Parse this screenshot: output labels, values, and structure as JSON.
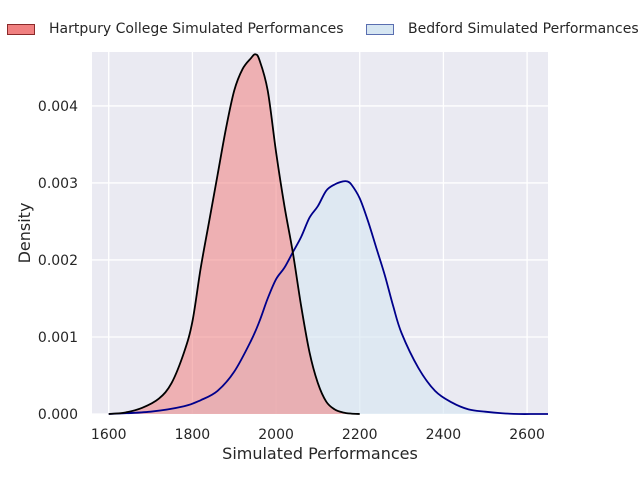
{
  "chart_data": {
    "type": "area",
    "title": "",
    "xlabel": "Simulated Performances",
    "ylabel": "Density",
    "xlim": [
      1560,
      2650
    ],
    "ylim": [
      0,
      0.0047
    ],
    "x_ticks": [
      1600,
      1800,
      2000,
      2200,
      2400,
      2600
    ],
    "y_ticks": [
      0.0,
      0.001,
      0.002,
      0.003,
      0.004
    ],
    "y_tick_labels": [
      "0.000",
      "0.001",
      "0.002",
      "0.003",
      "0.004"
    ],
    "grid": true,
    "legend_position": "top",
    "background": "#eaeaf2",
    "series": [
      {
        "name": "Hartpury College Simulated Performances",
        "fill": "#f08080",
        "line": "#000000",
        "fill_opacity": 0.55,
        "x": [
          1600,
          1640,
          1680,
          1720,
          1750,
          1780,
          1800,
          1820,
          1840,
          1860,
          1880,
          1900,
          1920,
          1940,
          1950,
          1960,
          1980,
          2000,
          2020,
          2040,
          2060,
          2080,
          2100,
          2120,
          2140,
          2160,
          2180,
          2200
        ],
        "y": [
          0.0,
          2e-05,
          8e-05,
          0.0002,
          0.0004,
          0.0008,
          0.0012,
          0.0019,
          0.0025,
          0.0031,
          0.0037,
          0.0042,
          0.00448,
          0.00462,
          0.00467,
          0.0046,
          0.0042,
          0.0034,
          0.0027,
          0.0021,
          0.0014,
          0.0008,
          0.0004,
          0.00016,
          6e-05,
          2e-05,
          5e-06,
          0.0
        ]
      },
      {
        "name": "Bedford Simulated Performances",
        "fill": "#d6e6f2",
        "line": "#00008b",
        "fill_opacity": 0.6,
        "x": [
          1600,
          1700,
          1780,
          1820,
          1860,
          1900,
          1940,
          1960,
          1980,
          2000,
          2020,
          2040,
          2060,
          2080,
          2100,
          2120,
          2140,
          2160,
          2170,
          2180,
          2200,
          2220,
          2240,
          2260,
          2280,
          2300,
          2340,
          2380,
          2420,
          2460,
          2500,
          2540,
          2580,
          2620,
          2650
        ],
        "y": [
          0.0,
          3e-05,
          0.0001,
          0.00018,
          0.0003,
          0.00055,
          0.00095,
          0.0012,
          0.0015,
          0.00175,
          0.0019,
          0.0021,
          0.0023,
          0.00255,
          0.0027,
          0.0029,
          0.00298,
          0.00302,
          0.00302,
          0.00298,
          0.0028,
          0.0025,
          0.00215,
          0.0018,
          0.0014,
          0.00105,
          0.0006,
          0.0003,
          0.00015,
          6e-05,
          3e-05,
          1e-05,
          0.0,
          0.0,
          0.0
        ]
      }
    ]
  }
}
